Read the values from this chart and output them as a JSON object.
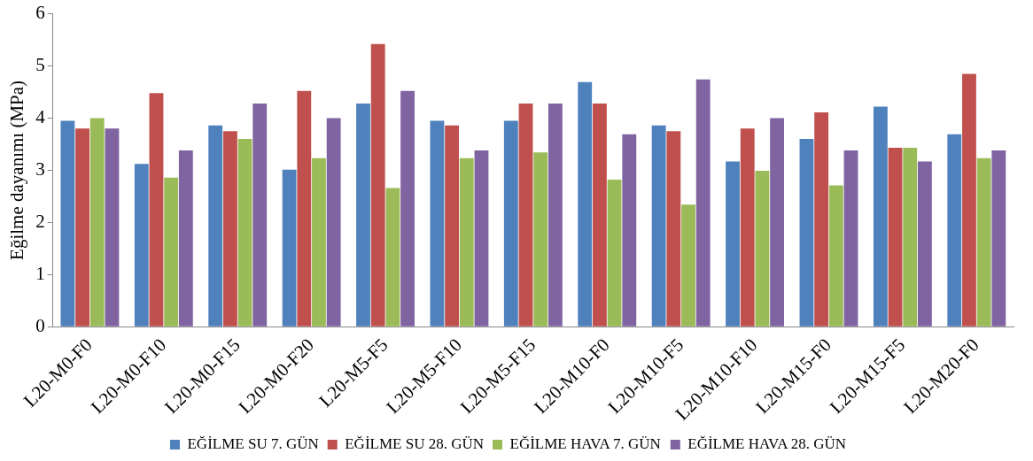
{
  "chart_data": {
    "type": "bar",
    "ylabel": "Eğilme dayanımı (MPa)",
    "categories": [
      "L20-M0-F0",
      "L20-M0-F10",
      "L20-M0-F15",
      "L20-M0-F20",
      "L20-M5-F5",
      "L20-M5-F10",
      "L20-M5-F15",
      "L20-M10-F0",
      "L20-M10-F5",
      "L20-M10-F10",
      "L20-M15-F0",
      "L20-M15-F5",
      "L20-M20-F0"
    ],
    "series": [
      {
        "name": "EĞİLME SU 7. GÜN",
        "color": "#4f81bd",
        "values": [
          3.95,
          3.12,
          3.86,
          3.01,
          4.28,
          3.95,
          3.95,
          4.69,
          3.86,
          3.17,
          3.6,
          4.22,
          3.69
        ]
      },
      {
        "name": "EĞİLME SU 28. GÜN",
        "color": "#c0504d",
        "values": [
          3.8,
          4.48,
          3.75,
          4.52,
          5.42,
          3.86,
          4.28,
          4.28,
          3.75,
          3.8,
          4.11,
          3.43,
          4.85
        ]
      },
      {
        "name": "EĞİLME HAVA 7. GÜN",
        "color": "#9bbb59",
        "values": [
          4.0,
          2.86,
          3.6,
          3.23,
          2.66,
          3.23,
          3.34,
          2.82,
          2.34,
          2.99,
          2.71,
          3.43,
          3.23
        ]
      },
      {
        "name": "EĞİLME HAVA 28. GÜN",
        "color": "#8064a2",
        "values": [
          3.8,
          3.38,
          4.28,
          4.0,
          4.52,
          3.38,
          4.28,
          3.69,
          4.74,
          4.0,
          3.38,
          3.17,
          3.38
        ]
      }
    ],
    "ylim": [
      0,
      6
    ],
    "yticks": [
      0,
      1,
      2,
      3,
      4,
      5,
      6
    ],
    "grid": false,
    "legend": "bottom"
  }
}
